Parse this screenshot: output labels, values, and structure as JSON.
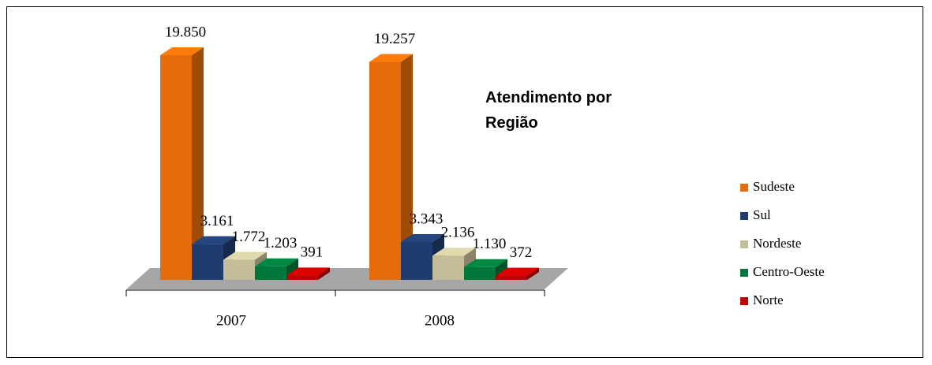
{
  "chart_data": {
    "type": "bar3d",
    "title": "Atendimento por Região",
    "categories": [
      "2007",
      "2008"
    ],
    "series": [
      {
        "name": "Sudeste",
        "color": "#e46c0a",
        "values": [
          19850,
          19257
        ],
        "value_labels": [
          "19.850",
          "19.257"
        ]
      },
      {
        "name": "Sul",
        "color": "#1f3c6e",
        "values": [
          3161,
          3343
        ],
        "value_labels": [
          "3.161",
          "3.343"
        ]
      },
      {
        "name": "Nordeste",
        "color": "#c4bd97",
        "values": [
          1772,
          2136
        ],
        "value_labels": [
          "1.772",
          "2.136"
        ]
      },
      {
        "name": "Centro-Oeste",
        "color": "#00773a",
        "values": [
          1203,
          1130
        ],
        "value_labels": [
          "1.203",
          "1.130"
        ]
      },
      {
        "name": "Norte",
        "color": "#c00000",
        "values": [
          391,
          372
        ],
        "value_labels": [
          "391",
          "372"
        ]
      }
    ],
    "legend": "right"
  }
}
